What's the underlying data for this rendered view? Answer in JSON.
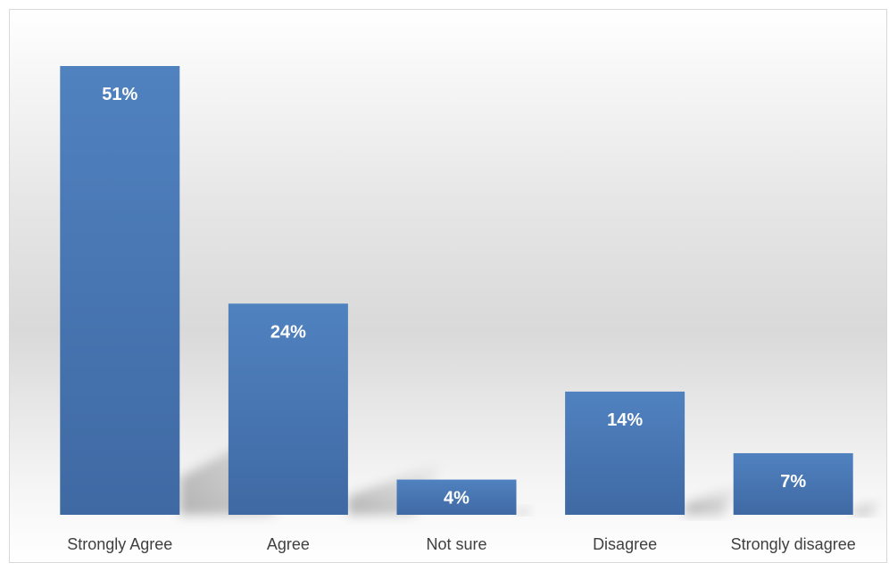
{
  "chart_data": {
    "type": "bar",
    "categories": [
      "Strongly Agree",
      "Agree",
      "Not sure",
      "Disagree",
      "Strongly disagree"
    ],
    "values": [
      51,
      24,
      4,
      14,
      7
    ],
    "value_labels": [
      "51%",
      "24%",
      "4%",
      "14%",
      "7%"
    ],
    "title": "",
    "xlabel": "",
    "ylabel": "",
    "ylim": [
      0,
      51
    ],
    "grid": false,
    "legend": "none",
    "colors": {
      "bar_top": "#5082c0",
      "bar_bottom": "#3f69a3",
      "value_label": "#ffffff",
      "category_label": "#404040",
      "frame": "#d9d9d9",
      "background_top": "#ffffff",
      "background_mid": "#d9d9d9"
    }
  }
}
